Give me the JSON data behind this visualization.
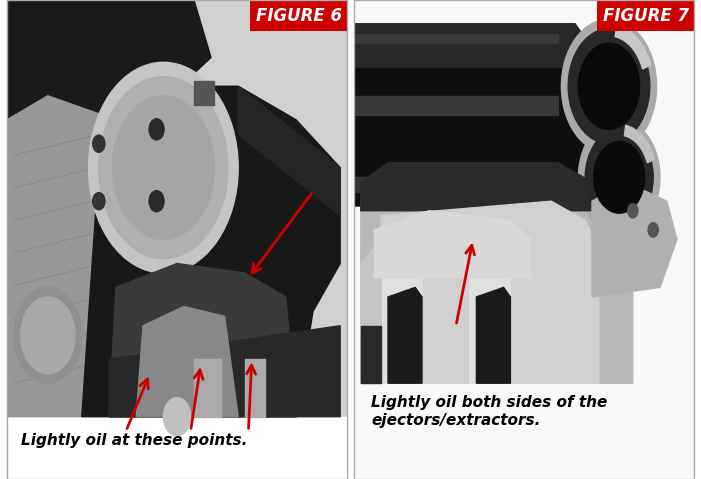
{
  "fig_width": 7.01,
  "fig_height": 4.79,
  "dpi": 100,
  "bg_color": "#ffffff",
  "label_bg": "#cc0000",
  "label_text_color": "#ffffff",
  "label_fig6": "FIGURE 6",
  "label_fig7": "FIGURE 7",
  "caption_fig6": "Lightly oil at these points.",
  "caption_fig7": "Lightly oil both sides of the\nejectors/extractors.",
  "caption_color": "#000000",
  "arrow_color": "#cc0000",
  "label_fontsize": 12,
  "caption_fontsize": 11,
  "panel_border": "#aaaaaa",
  "photo_bg6": "#d8d8d8",
  "photo_bg7": "#f0f0f0"
}
